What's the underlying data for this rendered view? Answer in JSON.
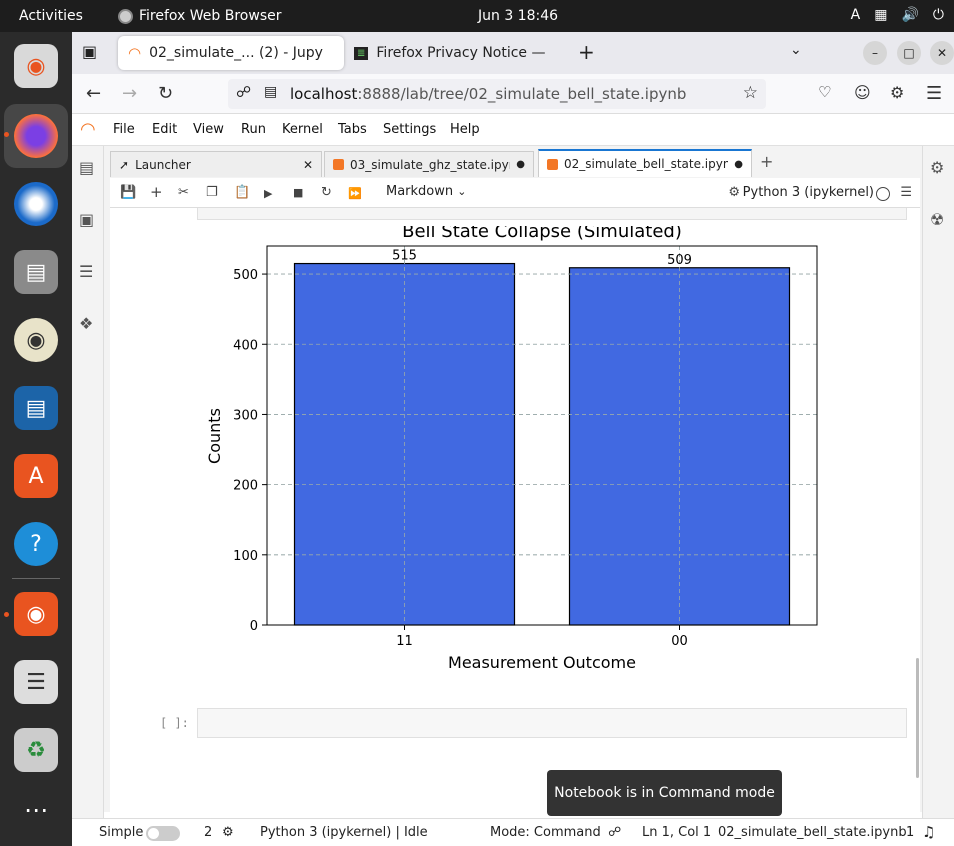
{
  "topbar": {
    "activities": "Activities",
    "app_name": "Firefox Web Browser",
    "clock": "Jun 3  18:46",
    "input_indicator": "A"
  },
  "browser": {
    "tabs": [
      {
        "title": "02_simulate_... (2) - Jupy"
      },
      {
        "title": "Firefox Privacy Notice —"
      }
    ],
    "url_host": "localhost",
    "url_rest": ":8888/lab/tree/02_simulate_bell_state.ipynb"
  },
  "jupyter": {
    "menu": [
      "File",
      "Edit",
      "View",
      "Run",
      "Kernel",
      "Tabs",
      "Settings",
      "Help"
    ],
    "tabs": [
      {
        "title": "Launcher"
      },
      {
        "title": "03_simulate_ghz_state.ipyn"
      },
      {
        "title": "02_simulate_bell_state.ipyn"
      }
    ],
    "cell_type": "Markdown",
    "kernel_name": "Python 3 (ipykernel)",
    "empty_prompt": "[ ]:"
  },
  "chart_data": {
    "type": "bar",
    "title": "Bell State Collapse (Simulated)",
    "xlabel": "Measurement Outcome",
    "ylabel": "Counts",
    "categories": [
      "11",
      "00"
    ],
    "values": [
      515,
      509
    ],
    "yticks": [
      0,
      100,
      200,
      300,
      400,
      500
    ],
    "ylim": [
      0,
      540
    ],
    "grid": true,
    "bar_color": "#4169e1"
  },
  "statusbar": {
    "mode_label": "Simple",
    "terminals": "2",
    "kernel_status": "Python 3 (ipykernel) | Idle",
    "mode": "Mode: Command",
    "cursor": "Ln 1, Col 1",
    "filename": "02_simulate_bell_state.ipynb",
    "notifications": "1"
  },
  "toast": "Notebook is in Command mode",
  "colors": {
    "accent": "#1976d2",
    "jupyter_orange": "#f37726",
    "ubuntu_orange": "#e95420"
  }
}
